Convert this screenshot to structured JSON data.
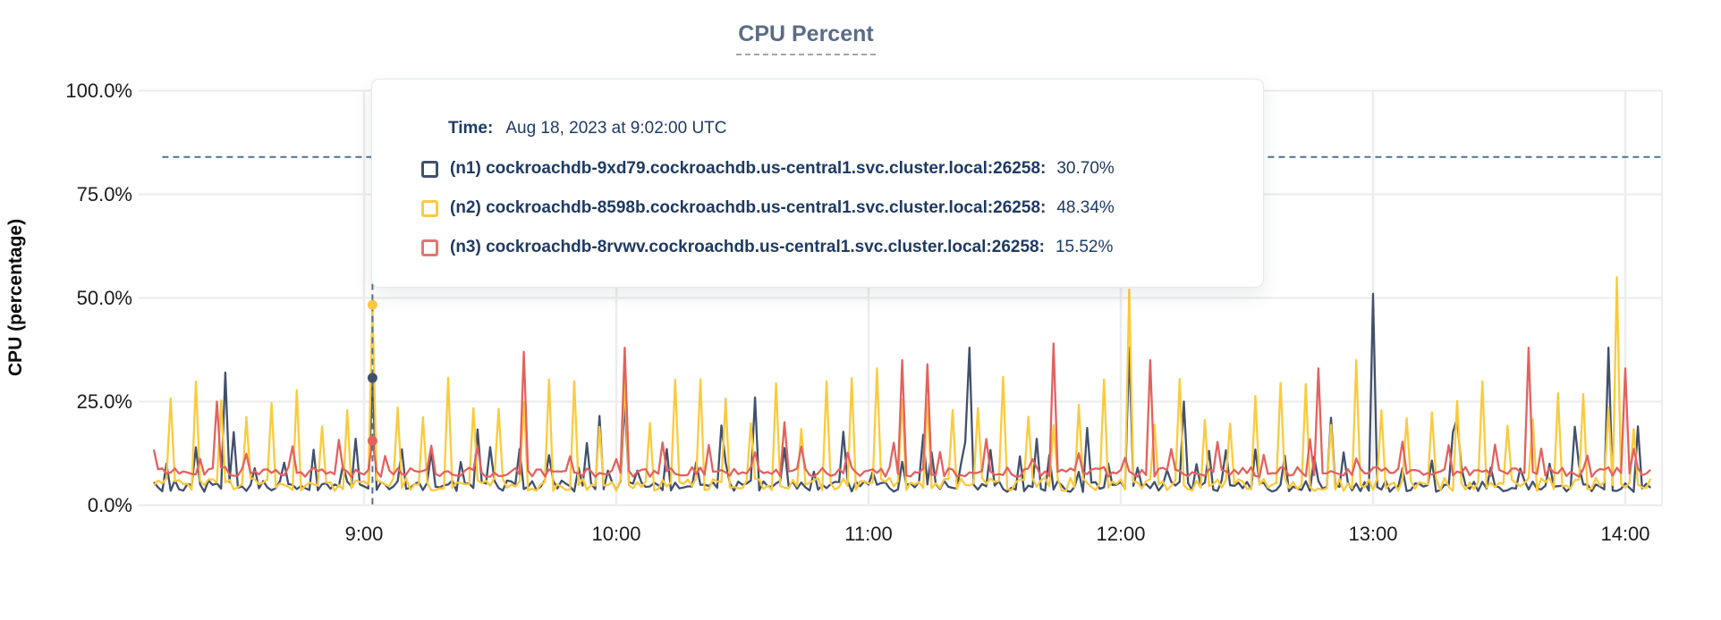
{
  "title": "CPU Percent",
  "y_axis": {
    "title": "CPU (percentage)",
    "ticks": [
      {
        "label": "100.0%",
        "value": 100
      },
      {
        "label": "75.0%",
        "value": 75
      },
      {
        "label": "50.0%",
        "value": 50
      },
      {
        "label": "25.0%",
        "value": 25
      },
      {
        "label": "0.0%",
        "value": 0
      }
    ]
  },
  "x_axis": {
    "ticks": [
      {
        "label": "9:00",
        "minutes": 540
      },
      {
        "label": "10:00",
        "minutes": 600
      },
      {
        "label": "11:00",
        "minutes": 660
      },
      {
        "label": "12:00",
        "minutes": 720
      },
      {
        "label": "13:00",
        "minutes": 780
      },
      {
        "label": "14:00",
        "minutes": 840
      }
    ]
  },
  "tooltip": {
    "time_label": "Time:",
    "time_value": "Aug 18, 2023 at 9:02:00 UTC",
    "rows": [
      {
        "label": "(n1) cockroachdb-9xd79.cockroachdb.us-central1.svc.cluster.local:26258:",
        "value": "30.70%",
        "color": "#41506b"
      },
      {
        "label": "(n2) cockroachdb-8598b.cockroachdb.us-central1.svc.cluster.local:26258:",
        "value": "48.34%",
        "color": "#fbca3d"
      },
      {
        "label": "(n3) cockroachdb-8rvwv.cockroachdb.us-central1.svc.cluster.local:26258:",
        "value": "15.52%",
        "color": "#e8736f"
      }
    ]
  },
  "colors": {
    "grid_h": "#ebebeb",
    "grid_v": "#ededed",
    "dashed": "#53708c",
    "text_navy": "#1e3a63",
    "title": "#5a6c87"
  },
  "chart_data": {
    "type": "line",
    "title": "CPU Percent",
    "xlabel": "",
    "ylabel": "CPU (percentage)",
    "ylim": [
      0,
      100
    ],
    "grid": true,
    "legend_position": "tooltip-overlay",
    "x_range_minutes": [
      490,
      846
    ],
    "x_tick_labels": [
      "9:00",
      "10:00",
      "11:00",
      "12:00",
      "13:00",
      "14:00"
    ],
    "reference_line_pct": 84,
    "hover": {
      "time_minutes": 542,
      "time_text": "Aug 18, 2023 at 9:02:00 UTC",
      "values": {
        "n1": 30.7,
        "n2": 48.34,
        "n3": 15.52
      }
    },
    "series": [
      {
        "name": "(n1) cockroachdb-9xd79.cockroachdb.us-central1.svc.cluster.local:26258",
        "id": "n1",
        "color": "#41506b",
        "seed": 11,
        "base": 4.6,
        "jitter": 1.4,
        "bump_period": 7,
        "bump_phase": 3,
        "bump_min": 8,
        "bump_max": 14,
        "spike_period": 29,
        "spike_phase": 16,
        "spike_min": 13,
        "spike_max": 22,
        "peaks": {
          "507": 32,
          "542": 30.7,
          "570": 14,
          "593": 15,
          "602": 25,
          "633": 26,
          "673": 17,
          "684": 38,
          "700": 16,
          "722": 38,
          "735": 25,
          "780": 51,
          "800": 21,
          "836": 38,
          "843": 19
        }
      },
      {
        "name": "(n2) cockroachdb-8598b.cockroachdb.us-central1.svc.cluster.local:26258",
        "id": "n2",
        "color": "#fbca3d",
        "seed": 22,
        "base": 5.0,
        "jitter": 1.6,
        "bump_period": 0,
        "bump_phase": 0,
        "bump_min": 0,
        "bump_max": 0,
        "spike_period": 6,
        "spike_phase": 2,
        "spike_min": 18,
        "spike_max": 31,
        "peaks": {
          "542": 48.34,
          "602": 30,
          "662": 33,
          "722": 52,
          "776": 35,
          "838": 55
        }
      },
      {
        "name": "(n3) cockroachdb-8rvwv.cockroachdb.us-central1.svc.cluster.local:26258",
        "id": "n3",
        "color": "#e4615e",
        "seed": 33,
        "base": 8.0,
        "jitter": 1.2,
        "bump_period": 11,
        "bump_phase": 6,
        "bump_min": 11,
        "bump_max": 16,
        "spike_period": 0,
        "spike_phase": 0,
        "spike_min": 0,
        "spike_max": 0,
        "peaks": {
          "505": 25,
          "542": 15.52,
          "578": 37,
          "602": 38,
          "640": 20,
          "668": 35,
          "674": 34,
          "704": 39,
          "727": 35,
          "767": 33,
          "817": 38,
          "840": 33
        }
      }
    ]
  }
}
